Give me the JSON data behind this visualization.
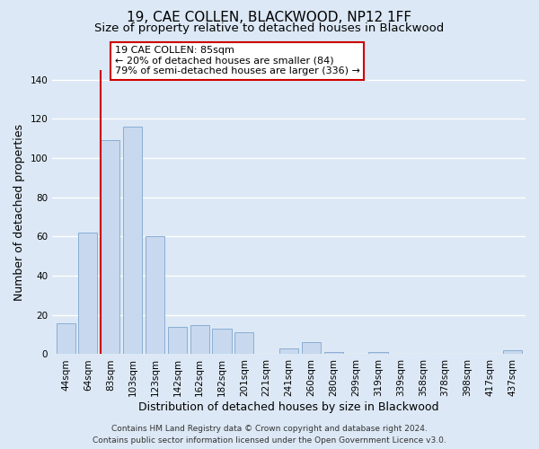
{
  "title": "19, CAE COLLEN, BLACKWOOD, NP12 1FF",
  "subtitle": "Size of property relative to detached houses in Blackwood",
  "xlabel": "Distribution of detached houses by size in Blackwood",
  "ylabel": "Number of detached properties",
  "footer_line1": "Contains HM Land Registry data © Crown copyright and database right 2024.",
  "footer_line2": "Contains public sector information licensed under the Open Government Licence v3.0.",
  "categories": [
    "44sqm",
    "64sqm",
    "83sqm",
    "103sqm",
    "123sqm",
    "142sqm",
    "162sqm",
    "182sqm",
    "201sqm",
    "221sqm",
    "241sqm",
    "260sqm",
    "280sqm",
    "299sqm",
    "319sqm",
    "339sqm",
    "358sqm",
    "378sqm",
    "398sqm",
    "417sqm",
    "437sqm"
  ],
  "values": [
    16,
    62,
    109,
    116,
    60,
    14,
    15,
    13,
    11,
    0,
    3,
    6,
    1,
    0,
    1,
    0,
    0,
    0,
    0,
    0,
    2
  ],
  "bar_color": "#c8d8ee",
  "bar_edge_color": "#8aadd4",
  "vline_index": 2,
  "vline_color": "#cc0000",
  "annotation_title": "19 CAE COLLEN: 85sqm",
  "annotation_line1": "← 20% of detached houses are smaller (84)",
  "annotation_line2": "79% of semi-detached houses are larger (336) →",
  "annotation_box_color": "#ffffff",
  "annotation_box_edge": "#cc0000",
  "ylim": [
    0,
    145
  ],
  "yticks": [
    0,
    20,
    40,
    60,
    80,
    100,
    120,
    140
  ],
  "bg_color": "#dce8f5",
  "plot_bg_color": "#dce8f5",
  "grid_color": "#ffffff",
  "title_fontsize": 11,
  "subtitle_fontsize": 9.5,
  "axis_label_fontsize": 9,
  "tick_fontsize": 7.5,
  "footer_fontsize": 6.5
}
